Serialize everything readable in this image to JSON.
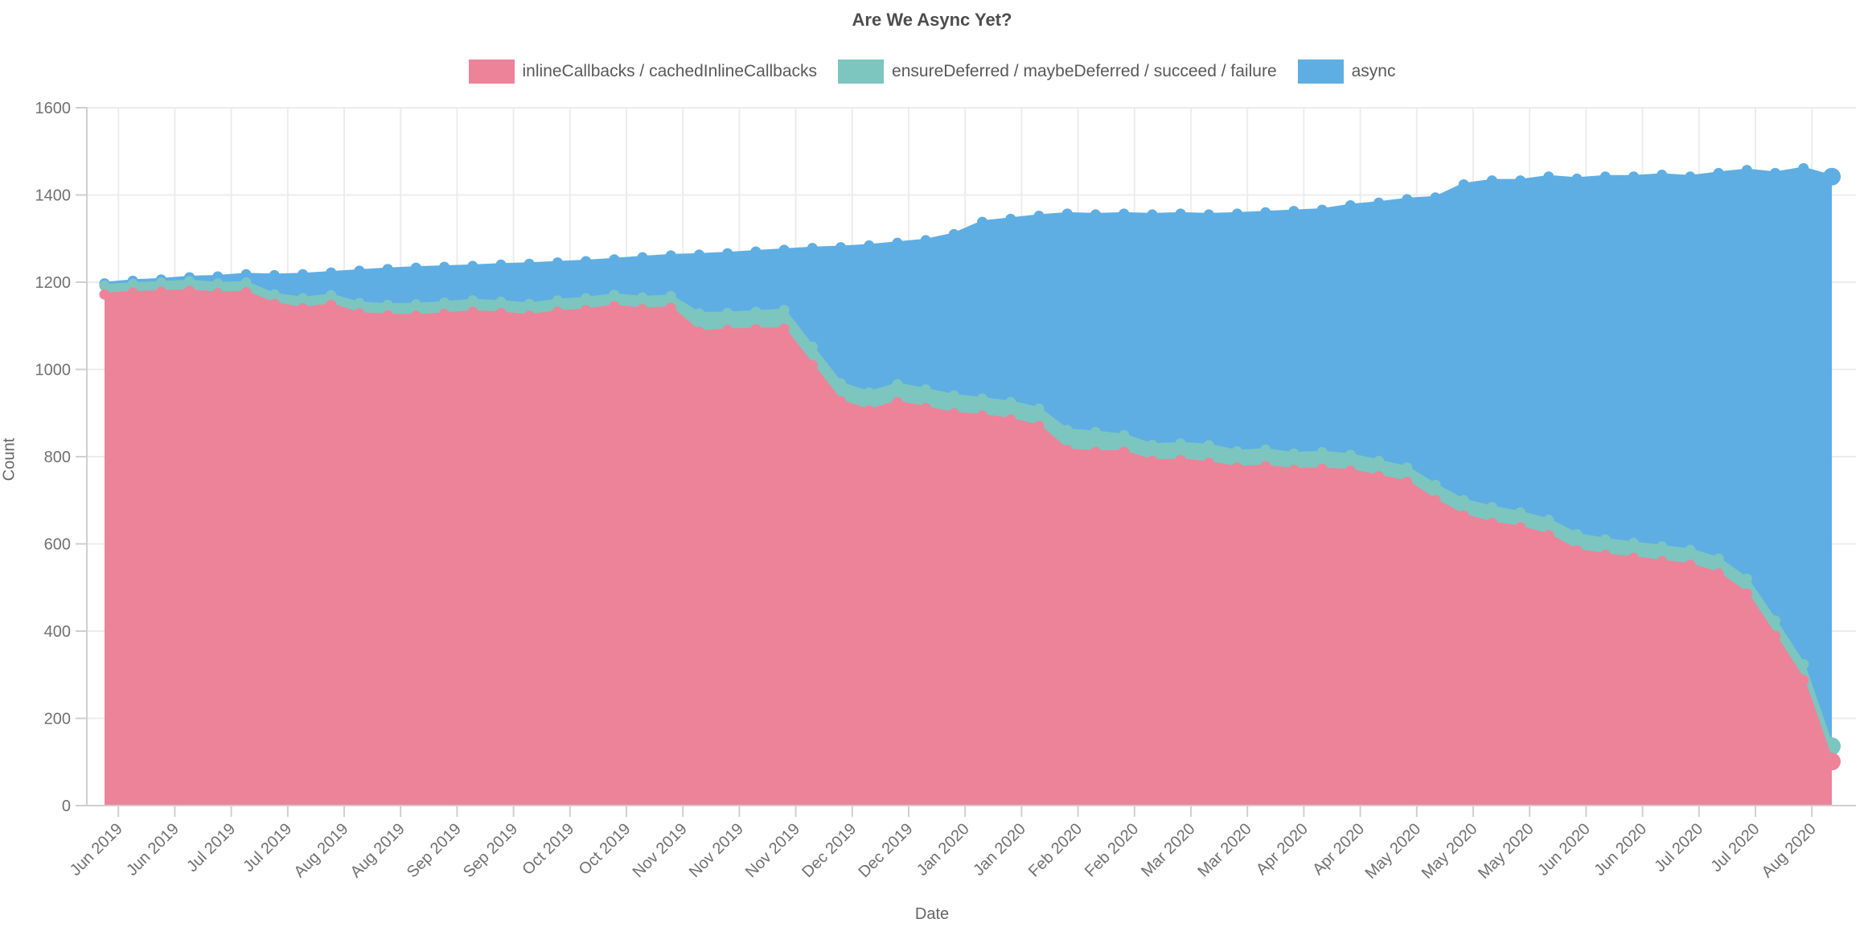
{
  "chart_data": {
    "type": "area",
    "stacked": true,
    "title": "Are We Async Yet?",
    "xlabel": "Date",
    "ylabel": "Count",
    "ylim": [
      0,
      1600
    ],
    "y_ticks": [
      0,
      200,
      400,
      600,
      800,
      1000,
      1200,
      1400,
      1600
    ],
    "grid": "on",
    "legend_position": "top",
    "markers": "circle at every weekly sample",
    "x_sampling": "weekly samples, Jun 2019 through Aug 2020",
    "x_tick_labels": [
      "Jun 2019",
      "Jun 2019",
      "Jul 2019",
      "Jul 2019",
      "Aug 2019",
      "Aug 2019",
      "Sep 2019",
      "Sep 2019",
      "Oct 2019",
      "Oct 2019",
      "Nov 2019",
      "Nov 2019",
      "Nov 2019",
      "Dec 2019",
      "Dec 2019",
      "Jan 2020",
      "Jan 2020",
      "Feb 2020",
      "Feb 2020",
      "Mar 2020",
      "Mar 2020",
      "Apr 2020",
      "Apr 2020",
      "May 2020",
      "May 2020",
      "May 2020",
      "Jun 2020",
      "Jun 2020",
      "Jul 2020",
      "Jul 2020",
      "Aug 2020"
    ],
    "series": [
      {
        "name": "inlineCallbacks / cachedInlineCallbacks",
        "color": "#ec8399",
        "values": [
          1172,
          1176,
          1178,
          1180,
          1175,
          1177,
          1150,
          1140,
          1148,
          1128,
          1124,
          1123,
          1127,
          1132,
          1129,
          1123,
          1132,
          1136,
          1145,
          1138,
          1141,
          1086,
          1090,
          1092,
          1093,
          1010,
          927,
          906,
          925,
          912,
          899,
          894,
          885,
          870,
          815,
          811,
          811,
          790,
          792,
          786,
          775,
          778,
          770,
          772,
          768,
          755,
          742,
          700,
          665,
          648,
          638,
          620,
          585,
          575,
          568,
          560,
          552,
          532,
          486,
          389,
          288,
          101
        ]
      },
      {
        "name": "ensureDeferred / maybeDeferred / succeed / failure",
        "color": "#7cc6bf",
        "values": [
          20,
          20,
          21,
          22,
          22,
          22,
          22,
          23,
          22,
          24,
          24,
          26,
          26,
          26,
          26,
          27,
          26,
          27,
          26,
          27,
          27,
          42,
          39,
          40,
          43,
          42,
          41,
          41,
          41,
          42,
          41,
          39,
          40,
          40,
          46,
          45,
          38,
          37,
          38,
          40,
          37,
          38,
          37,
          38,
          36,
          35,
          33,
          35,
          35,
          36,
          34,
          35,
          37,
          35,
          34,
          34,
          34,
          34,
          34,
          35,
          36,
          35
        ]
      },
      {
        "name": "async",
        "color": "#5eaee4",
        "values": [
          5,
          7,
          7,
          9,
          16,
          19,
          44,
          55,
          52,
          74,
          82,
          84,
          82,
          79,
          85,
          92,
          87,
          85,
          81,
          92,
          93,
          135,
          137,
          138,
          138,
          226,
          312,
          337,
          324,
          342,
          370,
          405,
          420,
          442,
          496,
          499,
          508,
          528,
          527,
          529,
          545,
          544,
          556,
          556,
          572,
          592,
          615,
          659,
          724,
          749,
          761,
          787,
          815,
          832,
          840,
          852,
          856,
          884,
          937,
          1026,
          1137,
          1306
        ]
      }
    ],
    "colors": {
      "title_text": "#4d4d4d",
      "legend_text": "#595959",
      "tick_text": "#707070",
      "grid_line": "#ececec",
      "axis_line": "#cfcfcf",
      "background": "#ffffff"
    }
  }
}
